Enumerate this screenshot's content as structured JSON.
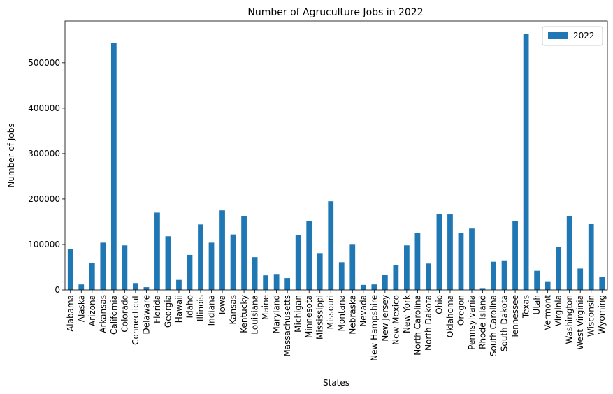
{
  "chart_data": {
    "type": "bar",
    "title": "Number of Agruculture Jobs in 2022",
    "xlabel": "States",
    "ylabel": "Number of Jobs",
    "ylim": [
      0,
      592000
    ],
    "yticks": [
      0,
      100000,
      200000,
      300000,
      400000,
      500000
    ],
    "ytick_labels": [
      "0",
      "100000",
      "200000",
      "300000",
      "400000",
      "500000"
    ],
    "grid": false,
    "legend_position": "top-right",
    "categories": [
      "Alabama",
      "Alaska",
      "Arizona",
      "Arkansas",
      "California",
      "Colorado",
      "Connecticut",
      "Delaware",
      "Florida",
      "Georgia",
      "Hawaii",
      "Idaho",
      "Illinois",
      "Indiana",
      "Iowa",
      "Kansas",
      "Kentucky",
      "Louisiana",
      "Maine",
      "Maryland",
      "Massachusetts",
      "Michigan",
      "Minnesota",
      "Mississippi",
      "Missouri",
      "Montana",
      "Nebraska",
      "Nevada",
      "New Hampshire",
      "New Jersey",
      "New Mexico",
      "New York",
      "North Carolina",
      "North Dakota",
      "Ohio",
      "Oklahoma",
      "Oregon",
      "Pennsylvania",
      "Rhode Island",
      "South Carolina",
      "South Dakota",
      "Tennessee",
      "Texas",
      "Utah",
      "Vermont",
      "Virginia",
      "Washington",
      "West Virginia",
      "Wisconsin",
      "Wyoming"
    ],
    "series": [
      {
        "name": "2022",
        "color": "#1f77b4",
        "values": [
          90000,
          12000,
          60000,
          104000,
          543000,
          98000,
          15000,
          6000,
          170000,
          118000,
          22000,
          77000,
          144000,
          104000,
          175000,
          122000,
          163000,
          72000,
          32000,
          35000,
          26000,
          120000,
          151000,
          81000,
          195000,
          61000,
          101000,
          11000,
          12000,
          33000,
          54000,
          98000,
          126000,
          58000,
          167000,
          166000,
          125000,
          135000,
          4000,
          62000,
          65000,
          151000,
          563000,
          42000,
          19000,
          95000,
          163000,
          47000,
          145000,
          28000
        ]
      }
    ]
  }
}
